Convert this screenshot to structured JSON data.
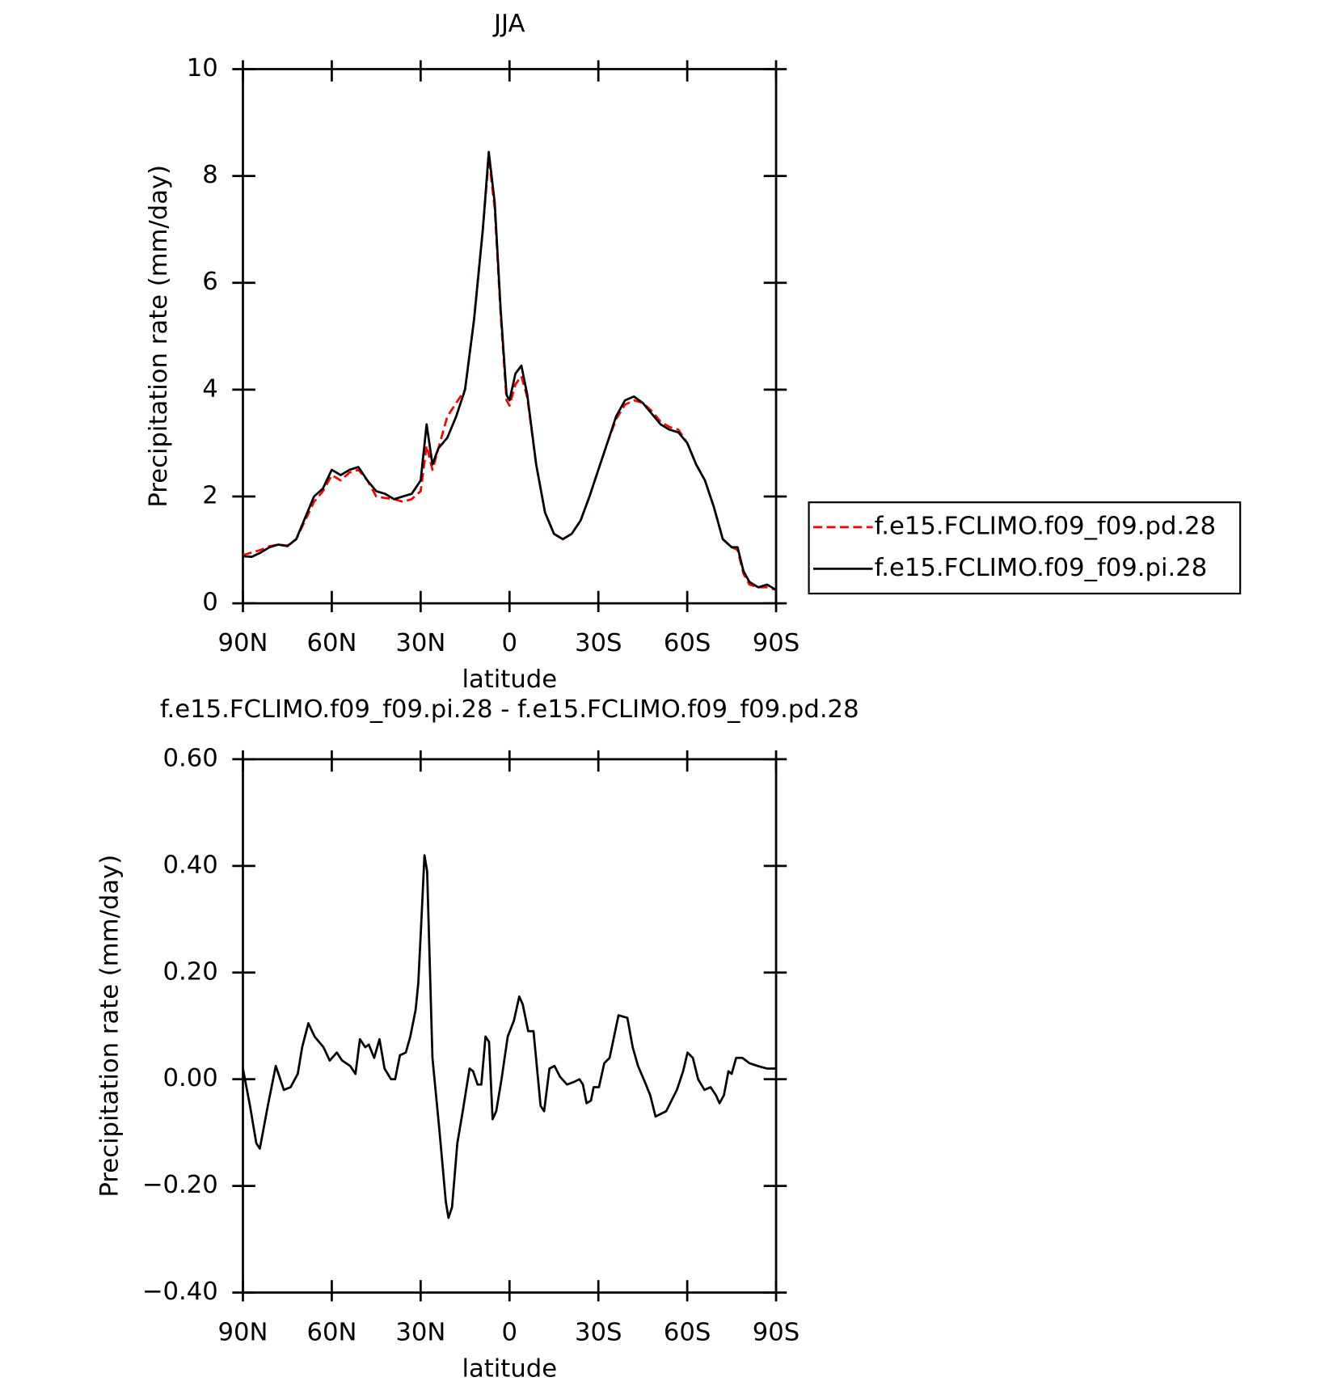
{
  "chart_data": [
    {
      "type": "line",
      "title": "JJA",
      "xlabel": "latitude",
      "ylabel": "Precipitation rate (mm/day)",
      "xlim": [
        90,
        -90
      ],
      "xticks": [
        {
          "value": 90,
          "label": "90N"
        },
        {
          "value": 60,
          "label": "60N"
        },
        {
          "value": 30,
          "label": "30N"
        },
        0,
        {
          "value": -30,
          "label": "30S"
        },
        {
          "value": -60,
          "label": "60S"
        },
        {
          "value": -90,
          "label": "90S"
        }
      ],
      "ylim": [
        0,
        10
      ],
      "yticks": [
        0,
        2,
        4,
        6,
        8,
        10
      ],
      "legend": "right",
      "x": [
        90,
        87,
        84,
        81,
        78,
        75,
        72,
        69,
        66,
        63,
        60,
        57,
        54,
        51,
        48,
        45,
        42,
        39,
        36,
        33,
        30,
        28,
        26,
        24,
        21,
        18,
        15,
        12,
        9,
        7,
        5,
        3,
        1,
        0,
        -2,
        -4,
        -6,
        -9,
        -12,
        -15,
        -18,
        -21,
        -24,
        -27,
        -30,
        -33,
        -36,
        -39,
        -42,
        -45,
        -48,
        -51,
        -54,
        -57,
        -60,
        -63,
        -66,
        -69,
        -72,
        -75,
        -77,
        -79,
        -81,
        -84,
        -87,
        -90
      ],
      "series": [
        {
          "name": "f.e15.FCLIMO.f09_f09.pd.28",
          "color": "#ff0000",
          "style": "dashed",
          "values": [
            0.9,
            0.95,
            1.0,
            1.07,
            1.1,
            1.08,
            1.2,
            1.55,
            1.9,
            2.1,
            2.4,
            2.3,
            2.45,
            2.5,
            2.3,
            2.0,
            1.97,
            1.95,
            1.9,
            1.95,
            2.1,
            2.95,
            2.5,
            2.9,
            3.5,
            3.75,
            4.0,
            5.3,
            7.0,
            8.35,
            7.4,
            5.4,
            3.8,
            3.7,
            4.1,
            4.25,
            3.85,
            2.6,
            1.7,
            1.3,
            1.2,
            1.3,
            1.55,
            2.0,
            2.5,
            3.0,
            3.45,
            3.72,
            3.8,
            3.75,
            3.6,
            3.4,
            3.3,
            3.25,
            3.0,
            2.6,
            2.3,
            1.8,
            1.2,
            1.05,
            1.0,
            0.55,
            0.35,
            0.3,
            0.3,
            0.25
          ]
        },
        {
          "name": "f.e15.FCLIMO.f09_f09.pi.28",
          "color": "#000000",
          "style": "solid",
          "values": [
            0.88,
            0.87,
            0.95,
            1.05,
            1.1,
            1.07,
            1.2,
            1.6,
            2.0,
            2.15,
            2.5,
            2.4,
            2.5,
            2.55,
            2.3,
            2.1,
            2.05,
            1.95,
            2.0,
            2.05,
            2.3,
            3.35,
            2.6,
            2.9,
            3.1,
            3.5,
            4.0,
            5.3,
            7.0,
            8.45,
            7.5,
            5.5,
            3.9,
            3.8,
            4.3,
            4.45,
            3.9,
            2.6,
            1.7,
            1.3,
            1.2,
            1.3,
            1.55,
            2.0,
            2.5,
            3.0,
            3.5,
            3.8,
            3.87,
            3.75,
            3.55,
            3.35,
            3.25,
            3.2,
            3.0,
            2.6,
            2.3,
            1.8,
            1.2,
            1.05,
            1.05,
            0.6,
            0.4,
            0.3,
            0.35,
            0.25
          ]
        }
      ]
    },
    {
      "type": "line",
      "title": "f.e15.FCLIMO.f09_f09.pi.28 - f.e15.FCLIMO.f09_f09.pd.28",
      "xlabel": "latitude",
      "ylabel": "Precipitation rate (mm/day)",
      "xlim": [
        90,
        -90
      ],
      "xticks": [
        {
          "value": 90,
          "label": "90N"
        },
        {
          "value": 60,
          "label": "60N"
        },
        {
          "value": 30,
          "label": "30N"
        },
        0,
        {
          "value": -30,
          "label": "30S"
        },
        {
          "value": -60,
          "label": "60S"
        },
        {
          "value": -90,
          "label": "90S"
        }
      ],
      "ylim": [
        -0.4,
        0.6
      ],
      "yticks": [
        {
          "value": -0.4,
          "label": "−0.40"
        },
        {
          "value": -0.2,
          "label": "−0.20"
        },
        {
          "value": 0,
          "label": "0.00"
        },
        {
          "value": 0.2,
          "label": "0.20"
        },
        {
          "value": 0.4,
          "label": "0.40"
        },
        {
          "value": 0.6,
          "label": "0.60"
        }
      ],
      "color": "#000000",
      "x": [
        90,
        87.6,
        85.5,
        84.3,
        81.6,
        78.9,
        76.2,
        73.9,
        71.5,
        70,
        67.9,
        65.8,
        62.8,
        60.7,
        58.3,
        56.5,
        53.8,
        52,
        50.5,
        48.7,
        47.5,
        45.7,
        43.9,
        42.2,
        40,
        38.6,
        37,
        35,
        33.5,
        31.7,
        30.8,
        29.9,
        28.7,
        27.8,
        26,
        23.6,
        21.5,
        20.6,
        19.4,
        17.6,
        15.8,
        13.5,
        12.3,
        10.8,
        9.5,
        8.1,
        6.9,
        5.7,
        4.5,
        2.7,
        0.6,
        -1.5,
        -3.3,
        -4.5,
        -6.3,
        -8.1,
        -10.5,
        -11.7,
        -13.5,
        -15.2,
        -17,
        -19.4,
        -21.8,
        -23.6,
        -24.8,
        -26,
        -27.5,
        -28.4,
        -30.2,
        -32,
        -33.8,
        -36.8,
        -39.8,
        -41.6,
        -43.4,
        -45.7,
        -47.5,
        -49.3,
        -51.1,
        -52.9,
        -54.7,
        -56.5,
        -58.6,
        -60.1,
        -61.9,
        -63.7,
        -65.8,
        -67.9,
        -69.7,
        -70.9,
        -72.4,
        -73.9,
        -75,
        -76.5,
        -78.6,
        -81,
        -83.7,
        -87,
        -90
      ],
      "values": [
        0.02,
        -0.05,
        -0.12,
        -0.13,
        -0.05,
        0.025,
        -0.02,
        -0.015,
        0.01,
        0.06,
        0.105,
        0.08,
        0.06,
        0.035,
        0.05,
        0.035,
        0.025,
        0.01,
        0.075,
        0.06,
        0.065,
        0.04,
        0.075,
        0.02,
        0.0,
        0.0,
        0.045,
        0.05,
        0.08,
        0.13,
        0.18,
        0.28,
        0.42,
        0.39,
        0.04,
        -0.1,
        -0.23,
        -0.26,
        -0.24,
        -0.12,
        -0.06,
        0.02,
        0.015,
        -0.01,
        -0.01,
        0.08,
        0.07,
        -0.075,
        -0.06,
        0.0,
        0.08,
        0.11,
        0.155,
        0.14,
        0.09,
        0.09,
        -0.05,
        -0.06,
        0.02,
        0.025,
        0.005,
        -0.01,
        -0.005,
        0.0,
        -0.01,
        -0.045,
        -0.04,
        -0.015,
        -0.015,
        0.03,
        0.04,
        0.12,
        0.115,
        0.06,
        0.025,
        -0.005,
        -0.03,
        -0.07,
        -0.065,
        -0.06,
        -0.04,
        -0.02,
        0.015,
        0.05,
        0.04,
        0.0,
        -0.02,
        -0.015,
        -0.03,
        -0.045,
        -0.03,
        0.015,
        0.01,
        0.04,
        0.04,
        0.03,
        0.025,
        0.02,
        0.02
      ]
    }
  ]
}
